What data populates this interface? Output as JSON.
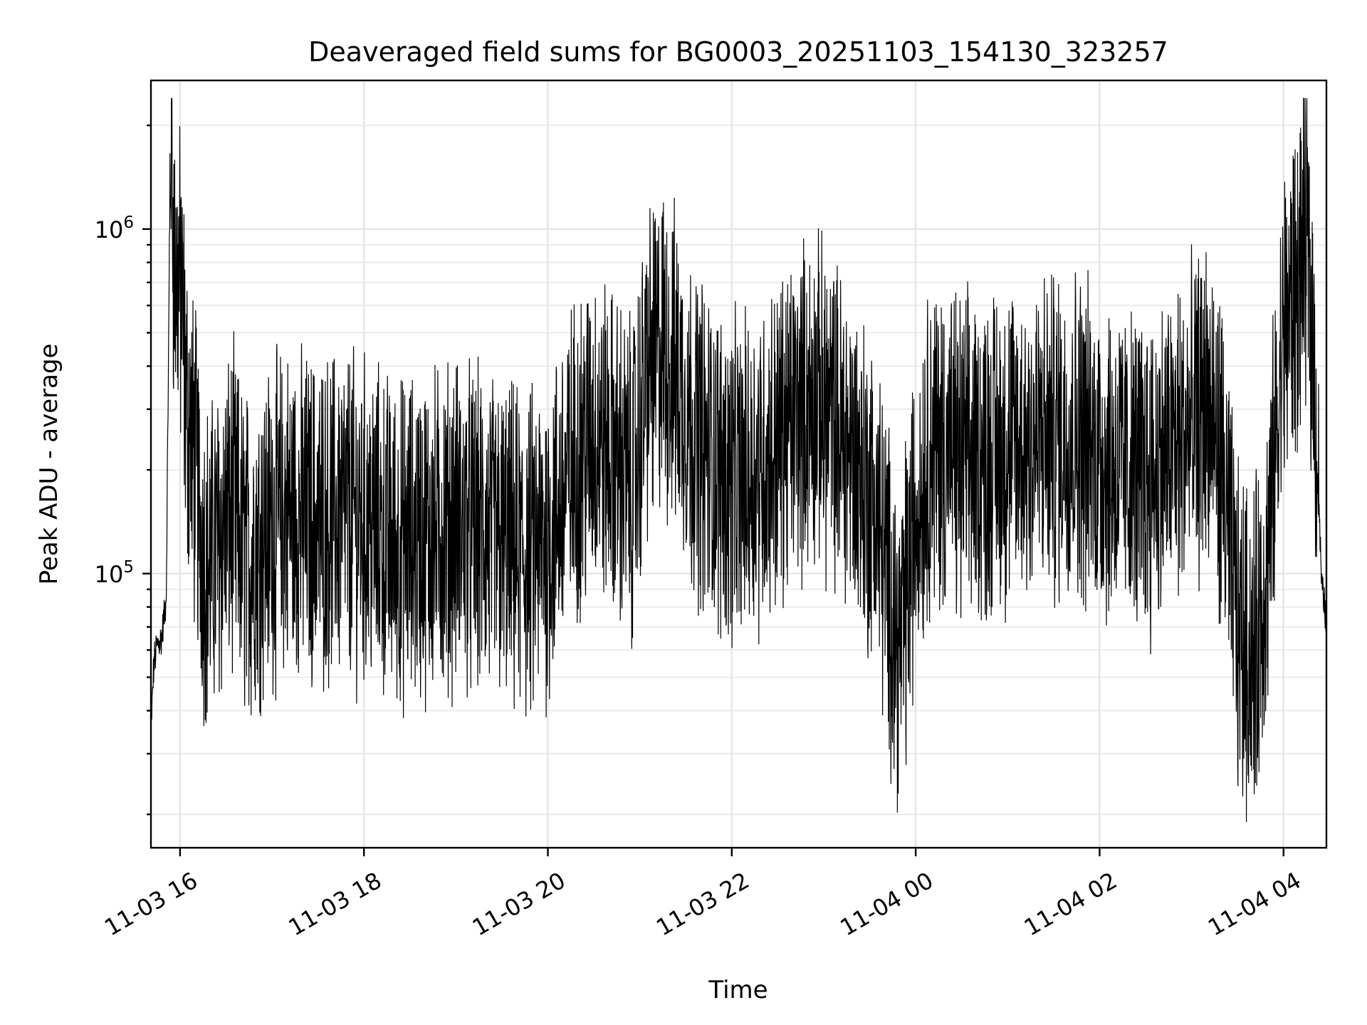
{
  "chart_data": {
    "type": "line",
    "title": "Deaveraged field sums for BG0003_20251103_154130_323257",
    "xlabel": "Time",
    "ylabel": "Peak ADU - average",
    "yscale": "log",
    "grid": "on (major and minor)",
    "line_color": "#000000",
    "xlim": [
      "2025-11-03 15:41",
      "2025-11-04 04:28"
    ],
    "ylim": [
      16000,
      2700000
    ],
    "x_ticks": [
      "2025-11-03 16:00",
      "2025-11-03 18:00",
      "2025-11-03 20:00",
      "2025-11-03 22:00",
      "2025-11-04 00:00",
      "2025-11-04 02:00",
      "2025-11-04 04:00"
    ],
    "x_tick_labels": [
      "11-03 16",
      "11-03 18",
      "11-03 20",
      "11-03 22",
      "11-04 00",
      "11-04 02",
      "11-04 04"
    ],
    "y_ticks": [
      100000,
      1000000
    ],
    "y_tick_labels": [
      {
        "base": "10",
        "exp": "5"
      },
      {
        "base": "10",
        "exp": "6"
      }
    ],
    "series": [
      {
        "x": [
          "2025-11-03 15:41",
          "2025-11-03 15:43",
          "2025-11-03 15:45",
          "2025-11-03 15:48",
          "2025-11-03 15:51",
          "2025-11-03 15:53",
          "2025-11-03 15:54",
          "2025-11-03 15:56",
          "2025-11-03 15:58",
          "2025-11-03 16:01",
          "2025-11-03 16:04",
          "2025-11-03 16:07",
          "2025-11-03 16:10",
          "2025-11-03 16:13",
          "2025-11-03 16:16",
          "2025-11-03 16:20",
          "2025-11-03 16:25",
          "2025-11-03 16:30",
          "2025-11-03 16:35",
          "2025-11-03 16:40",
          "2025-11-03 16:45",
          "2025-11-03 16:50",
          "2025-11-03 16:55",
          "2025-11-03 17:00",
          "2025-11-03 17:10",
          "2025-11-03 17:20",
          "2025-11-03 17:30",
          "2025-11-03 17:40",
          "2025-11-03 17:50",
          "2025-11-03 18:00",
          "2025-11-03 18:10",
          "2025-11-03 18:20",
          "2025-11-03 18:30",
          "2025-11-03 18:45",
          "2025-11-03 19:00",
          "2025-11-03 19:15",
          "2025-11-03 19:30",
          "2025-11-03 19:45",
          "2025-11-03 20:00",
          "2025-11-03 20:15",
          "2025-11-03 20:30",
          "2025-11-03 20:45",
          "2025-11-03 20:55",
          "2025-11-03 21:05",
          "2025-11-03 21:15",
          "2025-11-03 21:25",
          "2025-11-03 21:35",
          "2025-11-03 21:45",
          "2025-11-03 21:55",
          "2025-11-03 22:05",
          "2025-11-03 22:15",
          "2025-11-03 22:25",
          "2025-11-03 22:35",
          "2025-11-03 22:45",
          "2025-11-03 22:55",
          "2025-11-03 23:05",
          "2025-11-03 23:15",
          "2025-11-03 23:25",
          "2025-11-03 23:35",
          "2025-11-03 23:42",
          "2025-11-03 23:50",
          "2025-11-04 00:00",
          "2025-11-04 00:10",
          "2025-11-04 00:20",
          "2025-11-04 00:30",
          "2025-11-04 00:45",
          "2025-11-04 01:00",
          "2025-11-04 01:15",
          "2025-11-04 01:30",
          "2025-11-04 01:45",
          "2025-11-04 02:00",
          "2025-11-04 02:15",
          "2025-11-04 02:30",
          "2025-11-04 02:45",
          "2025-11-04 03:00",
          "2025-11-04 03:10",
          "2025-11-04 03:20",
          "2025-11-04 03:30",
          "2025-11-04 03:40",
          "2025-11-04 03:50",
          "2025-11-04 04:00",
          "2025-11-04 04:10",
          "2025-11-04 04:15",
          "2025-11-04 04:20",
          "2025-11-04 04:25",
          "2025-11-04 04:28"
        ],
        "y": [
          35000,
          55000,
          62000,
          65000,
          85000,
          800000,
          2200000,
          800000,
          720000,
          640000,
          300000,
          250000,
          200000,
          140000,
          110000,
          105000,
          125000,
          140000,
          150000,
          120000,
          110000,
          125000,
          130000,
          140000,
          150000,
          145000,
          140000,
          145000,
          150000,
          140000,
          130000,
          120000,
          125000,
          130000,
          140000,
          130000,
          120000,
          110000,
          125000,
          200000,
          260000,
          210000,
          180000,
          380000,
          450000,
          360000,
          260000,
          220000,
          190000,
          180000,
          200000,
          220000,
          260000,
          300000,
          320000,
          280000,
          240000,
          190000,
          150000,
          90000,
          60000,
          150000,
          240000,
          230000,
          210000,
          220000,
          230000,
          240000,
          250000,
          260000,
          220000,
          200000,
          190000,
          220000,
          260000,
          310000,
          200000,
          70000,
          55000,
          110000,
          500000,
          700000,
          1000000,
          400000,
          90000,
          75000
        ]
      }
    ]
  }
}
